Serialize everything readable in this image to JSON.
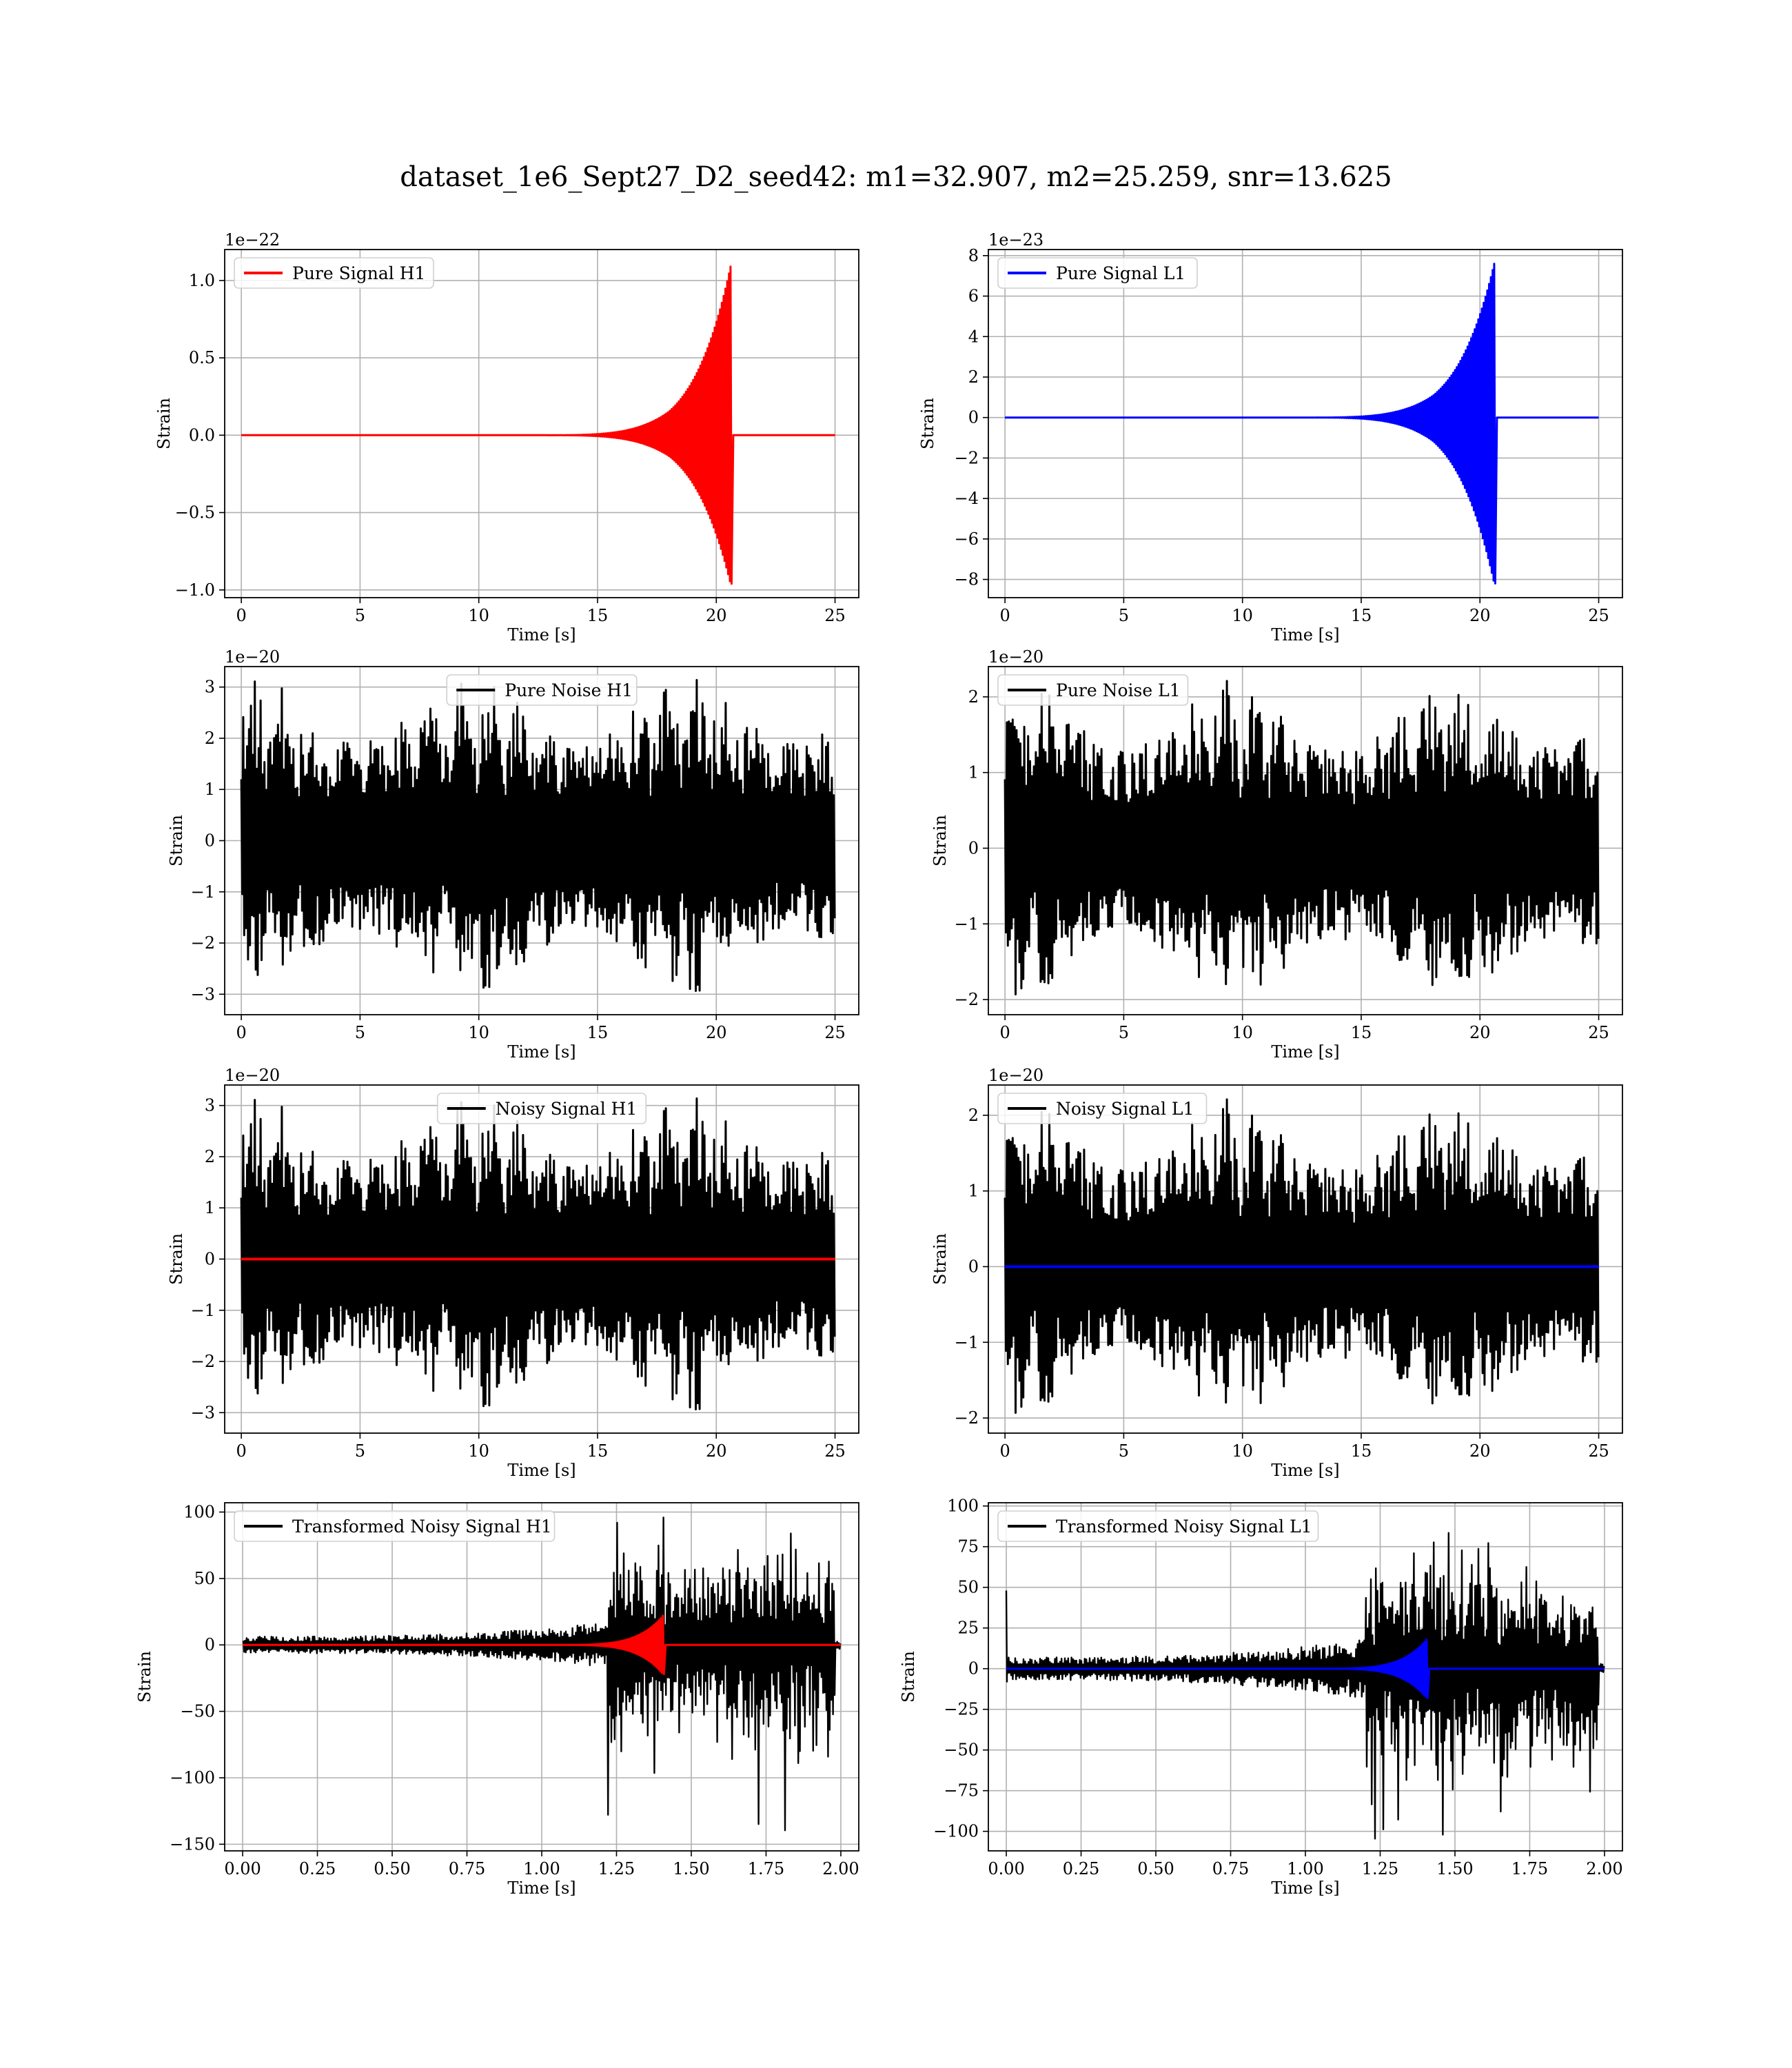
{
  "figure": {
    "suptitle": "dataset_1e6_Sept27_D2_seed42: m1=32.907, m2=25.259, snr=13.625"
  },
  "chart_data": [
    {
      "type": "line",
      "legend": "Pure Signal H1",
      "legend_position": "upper left",
      "xlabel": "Time [s]",
      "ylabel": "Strain",
      "offset_text": "1e−22",
      "xlim": [
        -0.7,
        26
      ],
      "ylim": [
        -1.05,
        1.2
      ],
      "grid": true,
      "xticks": [
        0,
        5,
        10,
        15,
        20,
        25
      ],
      "xtick_labels": [
        "0",
        "5",
        "10",
        "15",
        "20",
        "25"
      ],
      "yticks": [
        -1.0,
        -0.5,
        0.0,
        0.5,
        1.0
      ],
      "ytick_labels": [
        "−1.0",
        "−0.5",
        "0.0",
        "0.5",
        "1.0"
      ],
      "series": [
        {
          "name": "Pure Signal H1",
          "color": "#ff0000",
          "kind": "chirp",
          "x_range": [
            0,
            25
          ],
          "peak_time": 20.6,
          "peak_pos": 1.09,
          "peak_neg": -0.96,
          "width": 3
        }
      ]
    },
    {
      "type": "line",
      "legend": "Pure Signal L1",
      "legend_position": "upper left",
      "xlabel": "Time [s]",
      "ylabel": "Strain",
      "offset_text": "1e−23",
      "xlim": [
        -0.7,
        26
      ],
      "ylim": [
        -8.9,
        8.3
      ],
      "grid": true,
      "xticks": [
        0,
        5,
        10,
        15,
        20,
        25
      ],
      "xtick_labels": [
        "0",
        "5",
        "10",
        "15",
        "20",
        "25"
      ],
      "yticks": [
        -8,
        -6,
        -4,
        -2,
        0,
        2,
        4,
        6,
        8
      ],
      "ytick_labels": [
        "−8",
        "−6",
        "−4",
        "−2",
        "0",
        "2",
        "4",
        "6",
        "8"
      ],
      "series": [
        {
          "name": "Pure Signal L1",
          "color": "#0000ff",
          "kind": "chirp",
          "x_range": [
            0,
            25
          ],
          "peak_time": 20.6,
          "peak_pos": 7.6,
          "peak_neg": -8.2,
          "width": 3
        }
      ]
    },
    {
      "type": "line",
      "legend": "Pure Noise H1",
      "legend_position": "upper center",
      "xlabel": "Time [s]",
      "ylabel": "Strain",
      "offset_text": "1e−20",
      "xlim": [
        -0.7,
        26
      ],
      "ylim": [
        -3.4,
        3.4
      ],
      "grid": true,
      "xticks": [
        0,
        5,
        10,
        15,
        20,
        25
      ],
      "xtick_labels": [
        "0",
        "5",
        "10",
        "15",
        "20",
        "25"
      ],
      "yticks": [
        -3,
        -2,
        -1,
        0,
        1,
        2,
        3
      ],
      "ytick_labels": [
        "−3",
        "−2",
        "−1",
        "0",
        "1",
        "2",
        "3"
      ],
      "series": [
        {
          "name": "Pure Noise H1",
          "color": "#000000",
          "kind": "noise",
          "x_range": [
            0,
            25
          ],
          "amp_max": 3.25,
          "amp_min": -3.1,
          "seed": 11,
          "width": 3
        }
      ]
    },
    {
      "type": "line",
      "legend": "Pure Noise L1",
      "legend_position": "upper left",
      "xlabel": "Time [s]",
      "ylabel": "Strain",
      "offset_text": "1e−20",
      "xlim": [
        -0.7,
        26
      ],
      "ylim": [
        -2.2,
        2.4
      ],
      "grid": true,
      "xticks": [
        0,
        5,
        10,
        15,
        20,
        25
      ],
      "xtick_labels": [
        "0",
        "5",
        "10",
        "15",
        "20",
        "25"
      ],
      "yticks": [
        -2,
        -1,
        0,
        1,
        2
      ],
      "ytick_labels": [
        "−2",
        "−1",
        "0",
        "1",
        "2"
      ],
      "series": [
        {
          "name": "Pure Noise L1",
          "color": "#000000",
          "kind": "noise",
          "x_range": [
            0,
            25
          ],
          "amp_max": 2.28,
          "amp_min": -2.05,
          "seed": 23,
          "width": 3
        }
      ]
    },
    {
      "type": "line",
      "legend": "Noisy Signal H1",
      "legend_position": "upper center",
      "xlabel": "Time [s]",
      "ylabel": "Strain",
      "offset_text": "1e−20",
      "xlim": [
        -0.7,
        26
      ],
      "ylim": [
        -3.4,
        3.4
      ],
      "grid": true,
      "xticks": [
        0,
        5,
        10,
        15,
        20,
        25
      ],
      "xtick_labels": [
        "0",
        "5",
        "10",
        "15",
        "20",
        "25"
      ],
      "yticks": [
        -3,
        -2,
        -1,
        0,
        1,
        2,
        3
      ],
      "ytick_labels": [
        "−3",
        "−2",
        "−1",
        "0",
        "1",
        "2",
        "3"
      ],
      "series": [
        {
          "name": "Noisy Signal H1",
          "color": "#000000",
          "kind": "noise",
          "x_range": [
            0,
            25
          ],
          "amp_max": 3.25,
          "amp_min": -3.1,
          "seed": 11,
          "width": 3
        },
        {
          "color": "#ff0000",
          "kind": "flat",
          "x_range": [
            0,
            25
          ],
          "value": 0,
          "width": 4
        }
      ]
    },
    {
      "type": "line",
      "legend": "Noisy Signal L1",
      "legend_position": "upper left",
      "xlabel": "Time [s]",
      "ylabel": "Strain",
      "offset_text": "1e−20",
      "xlim": [
        -0.7,
        26
      ],
      "ylim": [
        -2.2,
        2.4
      ],
      "grid": true,
      "xticks": [
        0,
        5,
        10,
        15,
        20,
        25
      ],
      "xtick_labels": [
        "0",
        "5",
        "10",
        "15",
        "20",
        "25"
      ],
      "yticks": [
        -2,
        -1,
        0,
        1,
        2
      ],
      "ytick_labels": [
        "−2",
        "−1",
        "0",
        "1",
        "2"
      ],
      "series": [
        {
          "name": "Noisy Signal L1",
          "color": "#000000",
          "kind": "noise",
          "x_range": [
            0,
            25
          ],
          "amp_max": 2.28,
          "amp_min": -2.05,
          "seed": 23,
          "width": 3
        },
        {
          "color": "#0000ff",
          "kind": "flat",
          "x_range": [
            0,
            25
          ],
          "value": 0,
          "width": 4
        }
      ]
    },
    {
      "type": "line",
      "legend": "Transformed Noisy Signal H1",
      "legend_position": "upper left",
      "xlabel": "Time [s]",
      "ylabel": "Strain",
      "offset_text": "",
      "xlim": [
        -0.06,
        2.06
      ],
      "ylim": [
        -155,
        107
      ],
      "grid": true,
      "xticks": [
        0,
        0.25,
        0.5,
        0.75,
        1.0,
        1.25,
        1.5,
        1.75,
        2.0
      ],
      "xtick_labels": [
        "0.00",
        "0.25",
        "0.50",
        "0.75",
        "1.00",
        "1.25",
        "1.50",
        "1.75",
        "2.00"
      ],
      "yticks": [
        -150,
        -100,
        -50,
        0,
        50,
        100
      ],
      "ytick_labels": [
        "−150",
        "−100",
        "−50",
        "0",
        "50",
        "100"
      ],
      "series": [
        {
          "name": "Transformed Noisy Signal H1",
          "color": "#000000",
          "kind": "whitened",
          "x_range": [
            0,
            2
          ],
          "pre_amp": 9,
          "post_amp": 100,
          "neg_min": -143,
          "onset": 1.22,
          "end": 1.98,
          "seed": 5,
          "width": 2.4
        },
        {
          "color": "#ff0000",
          "kind": "chirp_small",
          "x_range": [
            0,
            2
          ],
          "peak_time": 1.405,
          "peak_amp": 22,
          "width": 3
        }
      ]
    },
    {
      "type": "line",
      "legend": "Transformed Noisy Signal L1",
      "legend_position": "upper left",
      "xlabel": "Time [s]",
      "ylabel": "Strain",
      "offset_text": "",
      "xlim": [
        -0.06,
        2.06
      ],
      "ylim": [
        -112,
        102
      ],
      "grid": true,
      "xticks": [
        0,
        0.25,
        0.5,
        0.75,
        1.0,
        1.25,
        1.5,
        1.75,
        2.0
      ],
      "xtick_labels": [
        "0.00",
        "0.25",
        "0.50",
        "0.75",
        "1.00",
        "1.25",
        "1.50",
        "1.75",
        "2.00"
      ],
      "yticks": [
        -100,
        -75,
        -50,
        -25,
        0,
        25,
        50,
        75,
        100
      ],
      "ytick_labels": [
        "−100",
        "−75",
        "−50",
        "−25",
        "0",
        "25",
        "50",
        "75",
        "100"
      ],
      "series": [
        {
          "name": "Transformed Noisy Signal L1",
          "color": "#000000",
          "kind": "whitened",
          "x_range": [
            0,
            2
          ],
          "pre_amp": 10,
          "post_amp": 90,
          "neg_min": -108,
          "onset": 1.2,
          "end": 1.98,
          "seed": 9,
          "spike_start": 48,
          "width": 2.4
        },
        {
          "color": "#0000ff",
          "kind": "chirp_small",
          "x_range": [
            0,
            2
          ],
          "peak_time": 1.405,
          "peak_amp": 18,
          "width": 3
        }
      ]
    }
  ]
}
